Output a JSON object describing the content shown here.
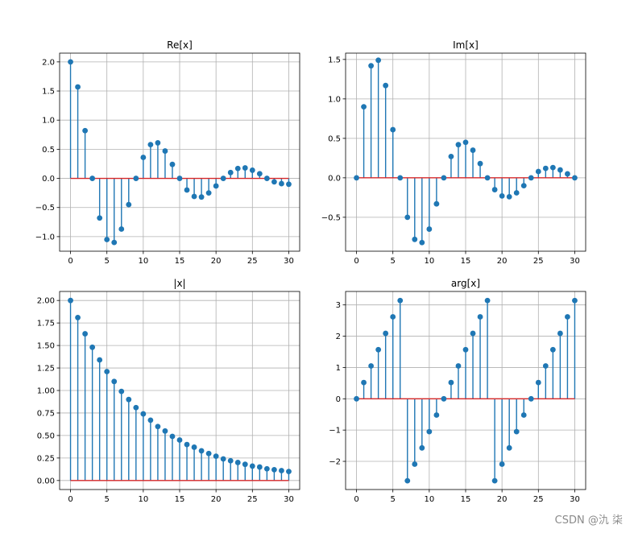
{
  "watermark": "CSDN @氿  柒",
  "colors": {
    "stem": "#1f77b4",
    "baseline": "#d62728",
    "grid": "#b0b0b0"
  },
  "chart_data": [
    {
      "type": "stem",
      "title": "Re[x]",
      "x": [
        0,
        1,
        2,
        3,
        4,
        5,
        6,
        7,
        8,
        9,
        10,
        11,
        12,
        13,
        14,
        15,
        16,
        17,
        18,
        19,
        20,
        21,
        22,
        23,
        24,
        25,
        26,
        27,
        28,
        29,
        30
      ],
      "values": [
        2.0,
        1.57,
        0.82,
        0.0,
        -0.68,
        -1.05,
        -1.1,
        -0.87,
        -0.45,
        0.0,
        0.36,
        0.58,
        0.61,
        0.47,
        0.24,
        0.0,
        -0.2,
        -0.31,
        -0.32,
        -0.25,
        -0.13,
        0.0,
        0.1,
        0.17,
        0.18,
        0.14,
        0.08,
        0.0,
        -0.06,
        -0.09,
        -0.1
      ],
      "xlim": [
        -1.5,
        31.5
      ],
      "ylim": [
        -1.25,
        2.15
      ],
      "xticks": [
        0,
        5,
        10,
        15,
        20,
        25,
        30
      ],
      "xtick_labels": [
        "0",
        "5",
        "10",
        "15",
        "20",
        "25",
        "30"
      ],
      "yticks": [
        -1.0,
        -0.5,
        0.0,
        0.5,
        1.0,
        1.5,
        2.0
      ],
      "ytick_labels": [
        "−1.0",
        "−0.5",
        "0.0",
        "0.5",
        "1.0",
        "1.5",
        "2.0"
      ],
      "grid": true
    },
    {
      "type": "stem",
      "title": "Im[x]",
      "x": [
        0,
        1,
        2,
        3,
        4,
        5,
        6,
        7,
        8,
        9,
        10,
        11,
        12,
        13,
        14,
        15,
        16,
        17,
        18,
        19,
        20,
        21,
        22,
        23,
        24,
        25,
        26,
        27,
        28,
        29,
        30
      ],
      "values": [
        0.0,
        0.9,
        1.42,
        1.49,
        1.17,
        0.61,
        0.0,
        -0.5,
        -0.78,
        -0.82,
        -0.65,
        -0.33,
        0.0,
        0.27,
        0.42,
        0.45,
        0.35,
        0.18,
        0.0,
        -0.15,
        -0.23,
        -0.24,
        -0.19,
        -0.1,
        0.0,
        0.08,
        0.12,
        0.13,
        0.1,
        0.05,
        0.0
      ],
      "xlim": [
        -1.5,
        31.5
      ],
      "ylim": [
        -0.93,
        1.58
      ],
      "xticks": [
        0,
        5,
        10,
        15,
        20,
        25,
        30
      ],
      "xtick_labels": [
        "0",
        "5",
        "10",
        "15",
        "20",
        "25",
        "30"
      ],
      "yticks": [
        -0.5,
        0.0,
        0.5,
        1.0,
        1.5
      ],
      "ytick_labels": [
        "−0.5",
        "0.0",
        "0.5",
        "1.0",
        "1.5"
      ],
      "grid": true
    },
    {
      "type": "stem",
      "title": "|x|",
      "x": [
        0,
        1,
        2,
        3,
        4,
        5,
        6,
        7,
        8,
        9,
        10,
        11,
        12,
        13,
        14,
        15,
        16,
        17,
        18,
        19,
        20,
        21,
        22,
        23,
        24,
        25,
        26,
        27,
        28,
        29,
        30
      ],
      "values": [
        2.0,
        1.81,
        1.63,
        1.48,
        1.34,
        1.21,
        1.1,
        0.99,
        0.9,
        0.81,
        0.74,
        0.67,
        0.6,
        0.55,
        0.49,
        0.45,
        0.4,
        0.37,
        0.33,
        0.3,
        0.27,
        0.24,
        0.22,
        0.2,
        0.18,
        0.16,
        0.15,
        0.13,
        0.12,
        0.11,
        0.1
      ],
      "xlim": [
        -1.5,
        31.5
      ],
      "ylim": [
        -0.1,
        2.1
      ],
      "xticks": [
        0,
        5,
        10,
        15,
        20,
        25,
        30
      ],
      "xtick_labels": [
        "0",
        "5",
        "10",
        "15",
        "20",
        "25",
        "30"
      ],
      "yticks": [
        0.0,
        0.25,
        0.5,
        0.75,
        1.0,
        1.25,
        1.5,
        1.75,
        2.0
      ],
      "ytick_labels": [
        "0.00",
        "0.25",
        "0.50",
        "0.75",
        "1.00",
        "1.25",
        "1.50",
        "1.75",
        "2.00"
      ],
      "grid": true
    },
    {
      "type": "stem",
      "title": "arg[x]",
      "x": [
        0,
        1,
        2,
        3,
        4,
        5,
        6,
        7,
        8,
        9,
        10,
        11,
        12,
        13,
        14,
        15,
        16,
        17,
        18,
        19,
        20,
        21,
        22,
        23,
        24,
        25,
        26,
        27,
        28,
        29,
        30
      ],
      "values": [
        0.0,
        0.52,
        1.05,
        1.57,
        2.09,
        2.62,
        3.14,
        -2.62,
        -2.09,
        -1.57,
        -1.05,
        -0.52,
        0.0,
        0.52,
        1.05,
        1.57,
        2.09,
        2.62,
        3.14,
        -2.62,
        -2.09,
        -1.57,
        -1.05,
        -0.52,
        0.0,
        0.52,
        1.05,
        1.57,
        2.09,
        2.62,
        3.14
      ],
      "xlim": [
        -1.5,
        31.5
      ],
      "ylim": [
        -2.9,
        3.43
      ],
      "xticks": [
        0,
        5,
        10,
        15,
        20,
        25,
        30
      ],
      "xtick_labels": [
        "0",
        "5",
        "10",
        "15",
        "20",
        "25",
        "30"
      ],
      "yticks": [
        -2,
        -1,
        0,
        1,
        2,
        3
      ],
      "ytick_labels": [
        "−2",
        "−1",
        "0",
        "1",
        "2",
        "3"
      ],
      "grid": true
    }
  ]
}
